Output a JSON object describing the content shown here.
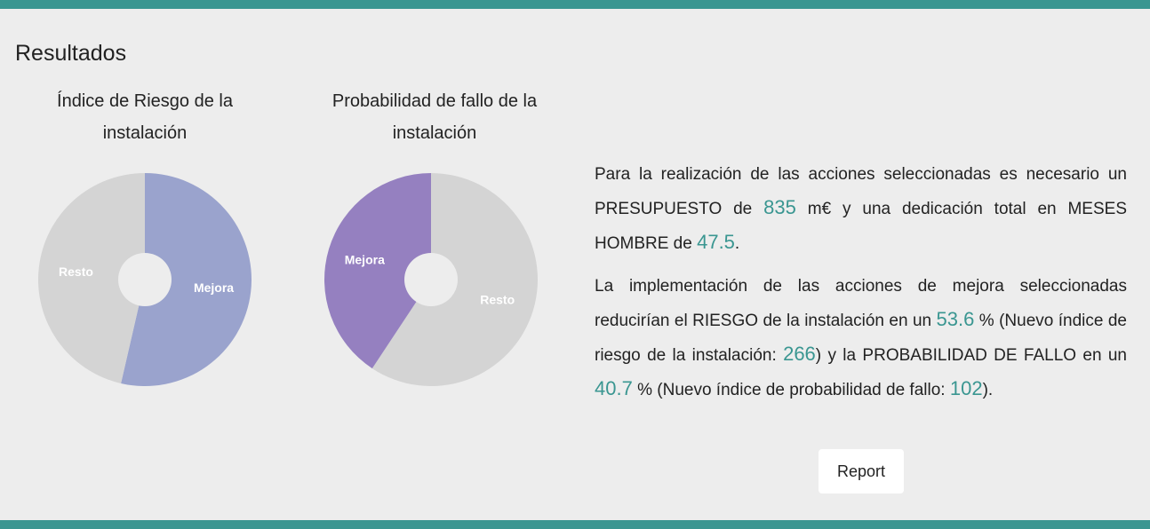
{
  "section": {
    "title": "Resultados"
  },
  "chart_data": [
    {
      "type": "pie",
      "title_line1": "Índice de Riesgo de la",
      "title_line2": "instalación",
      "labels": [
        "Mejora",
        "Resto"
      ],
      "values": [
        53.6,
        46.4
      ],
      "colors": [
        "#9aa3cd",
        "#d4d4d4"
      ]
    },
    {
      "type": "pie",
      "title_line1": "Probabilidad de fallo de la",
      "title_line2": "instalación",
      "labels": [
        "Resto",
        "Mejora"
      ],
      "values": [
        59.3,
        40.7
      ],
      "colors": [
        "#d4d4d4",
        "#9580c0"
      ]
    }
  ],
  "results": {
    "p1_a": "Para la realización de las acciones seleccionadas es necesario un PRESUPUESTO de ",
    "budget": "835",
    "p1_b": " m€ y una dedicación total en MESES HOMBRE de ",
    "months": "47.5",
    "p1_c": ".",
    "p2_a": "La implementación de las acciones de mejora seleccionadas reducirían el RIESGO de la instalación en un ",
    "risk_reduction": "53.6",
    "p2_b": " % (Nuevo índice de riesgo de la instalación: ",
    "new_risk": "266",
    "p2_c": ") y la PROBABILIDAD DE FALLO en un ",
    "prob_reduction": "40.7",
    "p2_d": " % (Nuevo índice de probabilidad de fallo: ",
    "new_prob": "102",
    "p2_e": ")."
  },
  "report_button": {
    "label": "Report"
  },
  "colors": {
    "accent": "#3a9691",
    "background": "#ededed"
  }
}
